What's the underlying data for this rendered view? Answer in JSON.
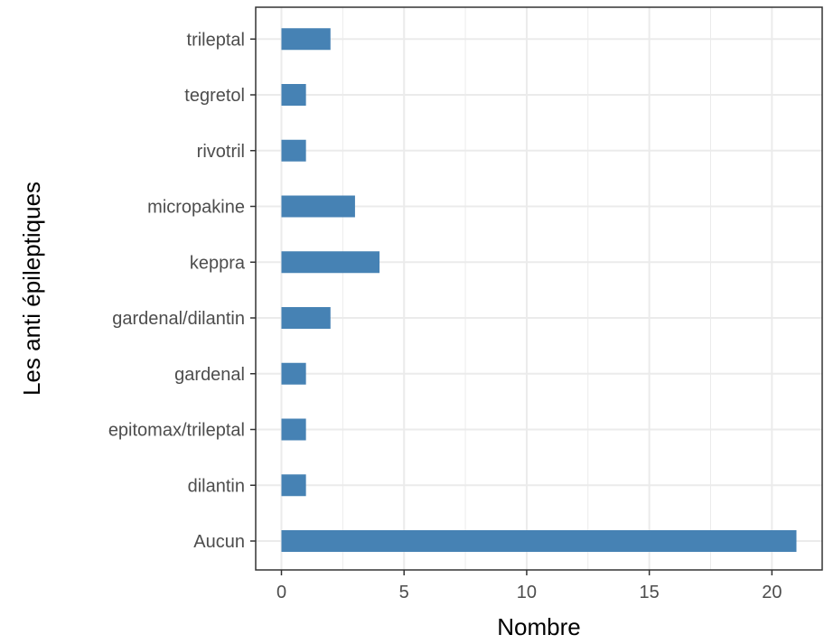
{
  "chart_data": {
    "type": "bar",
    "orientation": "horizontal",
    "xlabel": "Nombre",
    "ylabel": "Les anti épileptiques",
    "categories": [
      "Aucun",
      "dilantin",
      "epitomax/trileptal",
      "gardenal",
      "gardenal/dilantin",
      "keppra",
      "micropakine",
      "rivotril",
      "tegretol",
      "trileptal"
    ],
    "values": [
      21,
      1,
      1,
      1,
      2,
      4,
      3,
      1,
      1,
      2
    ],
    "xlim": [
      -1.05,
      22.05
    ],
    "xticks": [
      0,
      5,
      10,
      15,
      20
    ],
    "xtick_labels": [
      "0",
      "5",
      "10",
      "15",
      "20"
    ],
    "grid": true,
    "bar_color": "#4682b4",
    "grid_color": "#ebebeb",
    "panel_border_color": "#333333"
  }
}
